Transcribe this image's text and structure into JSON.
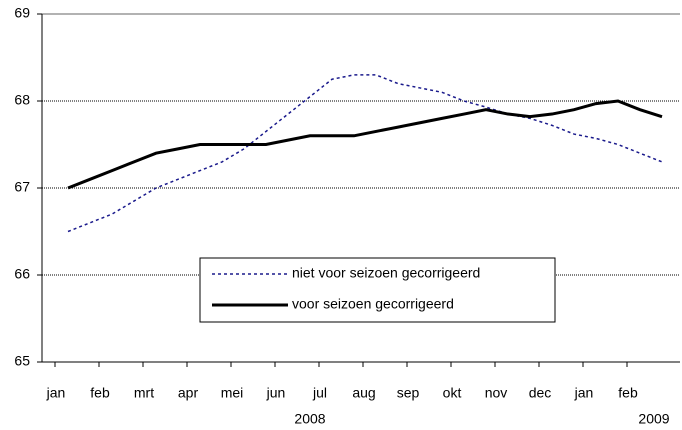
{
  "chart_data": {
    "type": "line",
    "categories": [
      "jan",
      null,
      "feb",
      null,
      "mrt",
      null,
      "apr",
      null,
      "mei",
      null,
      "jun",
      null,
      "jul",
      null,
      "aug",
      null,
      "sep",
      null,
      "okt",
      null,
      "nov",
      null,
      "dec",
      null,
      "jan",
      null,
      "feb",
      null
    ],
    "year_labels": [
      "2008",
      "2009"
    ],
    "series": [
      {
        "name": "niet voor seizoen gecorrigeerd",
        "color": "#1a1a8c",
        "dash": "dotted",
        "values": [
          66.5,
          66.6,
          66.7,
          66.85,
          67.0,
          67.1,
          67.2,
          67.3,
          67.45,
          67.65,
          67.85,
          68.05,
          68.25,
          68.3,
          68.3,
          68.2,
          68.15,
          68.1,
          68.0,
          67.93,
          67.85,
          67.8,
          67.72,
          67.62,
          67.57,
          67.5,
          67.4,
          67.3
        ]
      },
      {
        "name": "voor seizoen gecorrigeerd",
        "color": "#000000",
        "dash": "solid",
        "values": [
          67.0,
          67.1,
          67.2,
          67.3,
          67.4,
          67.45,
          67.5,
          67.5,
          67.5,
          67.5,
          67.55,
          67.6,
          67.6,
          67.6,
          67.65,
          67.7,
          67.75,
          67.8,
          67.85,
          67.9,
          67.85,
          67.82,
          67.85,
          67.9,
          67.97,
          68.0,
          67.9,
          67.82
        ]
      }
    ],
    "ylim": [
      65,
      69
    ],
    "yticks": [
      65,
      66,
      67,
      68,
      69
    ],
    "grid": true,
    "legend": "center-bottom"
  }
}
